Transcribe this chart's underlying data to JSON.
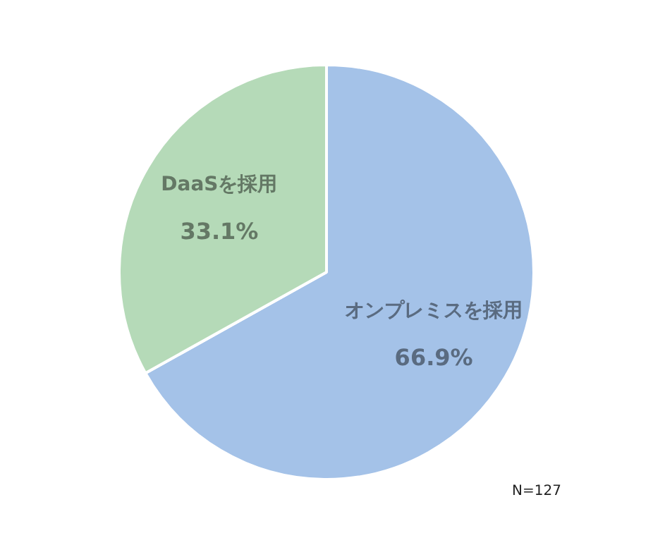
{
  "chart_data": {
    "type": "pie",
    "categories": [
      "オンプレミスを採用",
      "DaaSを採用"
    ],
    "values": [
      66.9,
      33.1
    ],
    "colors": [
      "#a4c2e8",
      "#b5dab8"
    ],
    "value_labels": [
      "66.9%",
      "33.1%"
    ],
    "legend": false,
    "annotations": [
      "N=127"
    ]
  }
}
